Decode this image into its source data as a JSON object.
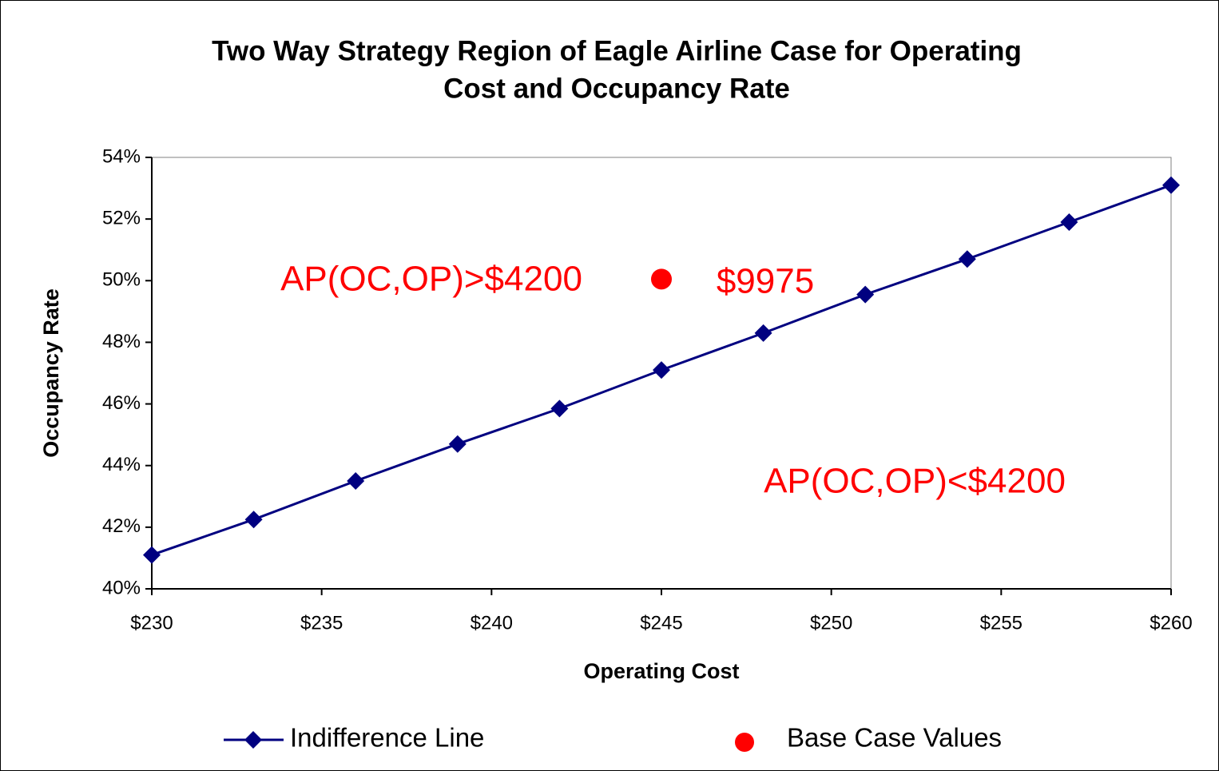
{
  "chart_data": {
    "type": "line",
    "title": [
      "Two Way Strategy Region of Eagle Airline Case for Operating",
      "Cost and Occupancy Rate"
    ],
    "x_label": "Operating Cost",
    "y_label": "Occupancy Rate",
    "xlim": [
      230,
      260
    ],
    "ylim": [
      40,
      54
    ],
    "xticks": [
      {
        "value": 230,
        "label": "$230"
      },
      {
        "value": 235,
        "label": "$235"
      },
      {
        "value": 240,
        "label": "$240"
      },
      {
        "value": 245,
        "label": "$245"
      },
      {
        "value": 250,
        "label": "$250"
      },
      {
        "value": 255,
        "label": "$255"
      },
      {
        "value": 260,
        "label": "$260"
      }
    ],
    "yticks": [
      {
        "value": 40,
        "label": "40%"
      },
      {
        "value": 42,
        "label": "42%"
      },
      {
        "value": 44,
        "label": "44%"
      },
      {
        "value": 46,
        "label": "46%"
      },
      {
        "value": 48,
        "label": "48%"
      },
      {
        "value": 50,
        "label": "50%"
      },
      {
        "value": 52,
        "label": "52%"
      },
      {
        "value": 54,
        "label": "54%"
      }
    ],
    "series": [
      {
        "name": "Indifference Line",
        "color": "#000080",
        "marker": "diamond",
        "x": [
          230,
          233,
          236,
          239,
          242,
          245,
          248,
          251,
          254,
          257,
          260
        ],
        "values": [
          41.1,
          42.25,
          43.5,
          44.7,
          45.85,
          47.1,
          48.3,
          49.55,
          50.7,
          51.9,
          53.1
        ]
      },
      {
        "name": "Base Case Values",
        "color": "#ff0000",
        "marker": "circle",
        "x": [
          245
        ],
        "values": [
          50.05
        ]
      }
    ],
    "annotations": [
      "AP(OC,OP)>$4200",
      "$9975",
      "AP(OC,OP)<$4200"
    ]
  }
}
